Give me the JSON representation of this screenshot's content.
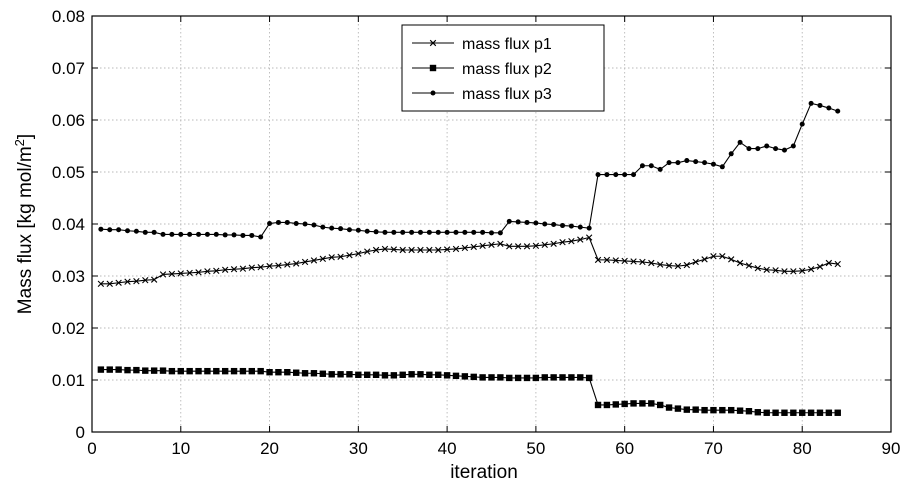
{
  "chart_data": {
    "type": "line",
    "xlabel": "iteration",
    "ylabel_main": "Mass flux [kg mol/m",
    "ylabel_sup": "2",
    "ylabel_close": "]",
    "xlim": [
      0,
      90
    ],
    "ylim": [
      0,
      0.08
    ],
    "x_ticks": [
      0,
      10,
      20,
      30,
      40,
      50,
      60,
      70,
      80,
      90
    ],
    "x_tick_labels": [
      "0",
      "10",
      "20",
      "30",
      "40",
      "50",
      "60",
      "70",
      "80",
      "90"
    ],
    "y_ticks": [
      0,
      0.01,
      0.02,
      0.03,
      0.04,
      0.05,
      0.06,
      0.07,
      0.08
    ],
    "y_tick_labels": [
      "0",
      "0.01",
      "0.02",
      "0.03",
      "0.04",
      "0.05",
      "0.06",
      "0.07",
      "0.08"
    ],
    "grid": true,
    "legend_position": "top-center",
    "line_color": "#000000",
    "x": [
      1,
      2,
      3,
      4,
      5,
      6,
      7,
      8,
      9,
      10,
      11,
      12,
      13,
      14,
      15,
      16,
      17,
      18,
      19,
      20,
      21,
      22,
      23,
      24,
      25,
      26,
      27,
      28,
      29,
      30,
      31,
      32,
      33,
      34,
      35,
      36,
      37,
      38,
      39,
      40,
      41,
      42,
      43,
      44,
      45,
      46,
      47,
      48,
      49,
      50,
      51,
      52,
      53,
      54,
      55,
      56,
      57,
      58,
      59,
      60,
      61,
      62,
      63,
      64,
      65,
      66,
      67,
      68,
      69,
      70,
      71,
      72,
      73,
      74,
      75,
      76,
      77,
      78,
      79,
      80,
      81,
      82,
      83,
      84
    ],
    "series": [
      {
        "name": "mass flux p1",
        "marker": "x",
        "values": [
          0.0285,
          0.0285,
          0.0287,
          0.0289,
          0.029,
          0.0292,
          0.0293,
          0.0303,
          0.0304,
          0.0305,
          0.0306,
          0.0307,
          0.0309,
          0.031,
          0.0312,
          0.0313,
          0.0314,
          0.0316,
          0.0317,
          0.0319,
          0.032,
          0.0322,
          0.0324,
          0.0327,
          0.033,
          0.0333,
          0.0336,
          0.0337,
          0.034,
          0.0343,
          0.0347,
          0.035,
          0.0352,
          0.0351,
          0.035,
          0.035,
          0.035,
          0.035,
          0.035,
          0.0351,
          0.0352,
          0.0354,
          0.0356,
          0.0358,
          0.036,
          0.0362,
          0.0357,
          0.0357,
          0.0357,
          0.0358,
          0.036,
          0.0362,
          0.0365,
          0.0367,
          0.037,
          0.0374,
          0.0331,
          0.0331,
          0.033,
          0.0329,
          0.0328,
          0.0327,
          0.0325,
          0.0322,
          0.032,
          0.0319,
          0.0321,
          0.0327,
          0.0332,
          0.0338,
          0.0338,
          0.0332,
          0.0325,
          0.032,
          0.0315,
          0.0312,
          0.0311,
          0.0309,
          0.0309,
          0.031,
          0.0313,
          0.0318,
          0.0325,
          0.0323
        ]
      },
      {
        "name": "mass flux p2",
        "marker": "square",
        "values": [
          0.012,
          0.012,
          0.012,
          0.0119,
          0.0119,
          0.0118,
          0.0118,
          0.0118,
          0.0117,
          0.0117,
          0.0117,
          0.0117,
          0.0117,
          0.0117,
          0.0117,
          0.0117,
          0.0117,
          0.0117,
          0.0117,
          0.0115,
          0.0115,
          0.0115,
          0.0114,
          0.0113,
          0.0113,
          0.0112,
          0.0111,
          0.0111,
          0.0111,
          0.011,
          0.011,
          0.011,
          0.0109,
          0.0109,
          0.011,
          0.0111,
          0.0111,
          0.011,
          0.011,
          0.0109,
          0.0108,
          0.0107,
          0.0106,
          0.0105,
          0.0105,
          0.0105,
          0.0104,
          0.0104,
          0.0104,
          0.0104,
          0.0105,
          0.0105,
          0.0105,
          0.0105,
          0.0105,
          0.0104,
          0.0052,
          0.0052,
          0.0053,
          0.0054,
          0.0055,
          0.0055,
          0.0055,
          0.0052,
          0.0047,
          0.0045,
          0.0043,
          0.0043,
          0.0042,
          0.0042,
          0.0042,
          0.0042,
          0.0041,
          0.004,
          0.0038,
          0.0037,
          0.0037,
          0.0037,
          0.0037,
          0.0037,
          0.0037,
          0.0037,
          0.0037,
          0.0037
        ]
      },
      {
        "name": "mass flux p3",
        "marker": "dot",
        "values": [
          0.039,
          0.0389,
          0.0389,
          0.0387,
          0.0386,
          0.0384,
          0.0384,
          0.038,
          0.038,
          0.038,
          0.038,
          0.038,
          0.038,
          0.038,
          0.0379,
          0.0379,
          0.0378,
          0.0378,
          0.0375,
          0.0401,
          0.0403,
          0.0403,
          0.0401,
          0.04,
          0.0398,
          0.0394,
          0.0392,
          0.0391,
          0.0389,
          0.0388,
          0.0386,
          0.0385,
          0.0384,
          0.0384,
          0.0384,
          0.0384,
          0.0384,
          0.0384,
          0.0384,
          0.0384,
          0.0384,
          0.0384,
          0.0384,
          0.0384,
          0.0383,
          0.0383,
          0.0405,
          0.0404,
          0.0403,
          0.0402,
          0.04,
          0.0399,
          0.0397,
          0.0396,
          0.0394,
          0.0392,
          0.0495,
          0.0495,
          0.0495,
          0.0495,
          0.0495,
          0.0512,
          0.0512,
          0.0505,
          0.0518,
          0.0518,
          0.0522,
          0.052,
          0.0518,
          0.0515,
          0.051,
          0.0535,
          0.0557,
          0.0545,
          0.0545,
          0.055,
          0.0545,
          0.0542,
          0.055,
          0.0592,
          0.0632,
          0.0628,
          0.0623,
          0.0617
        ]
      }
    ]
  }
}
